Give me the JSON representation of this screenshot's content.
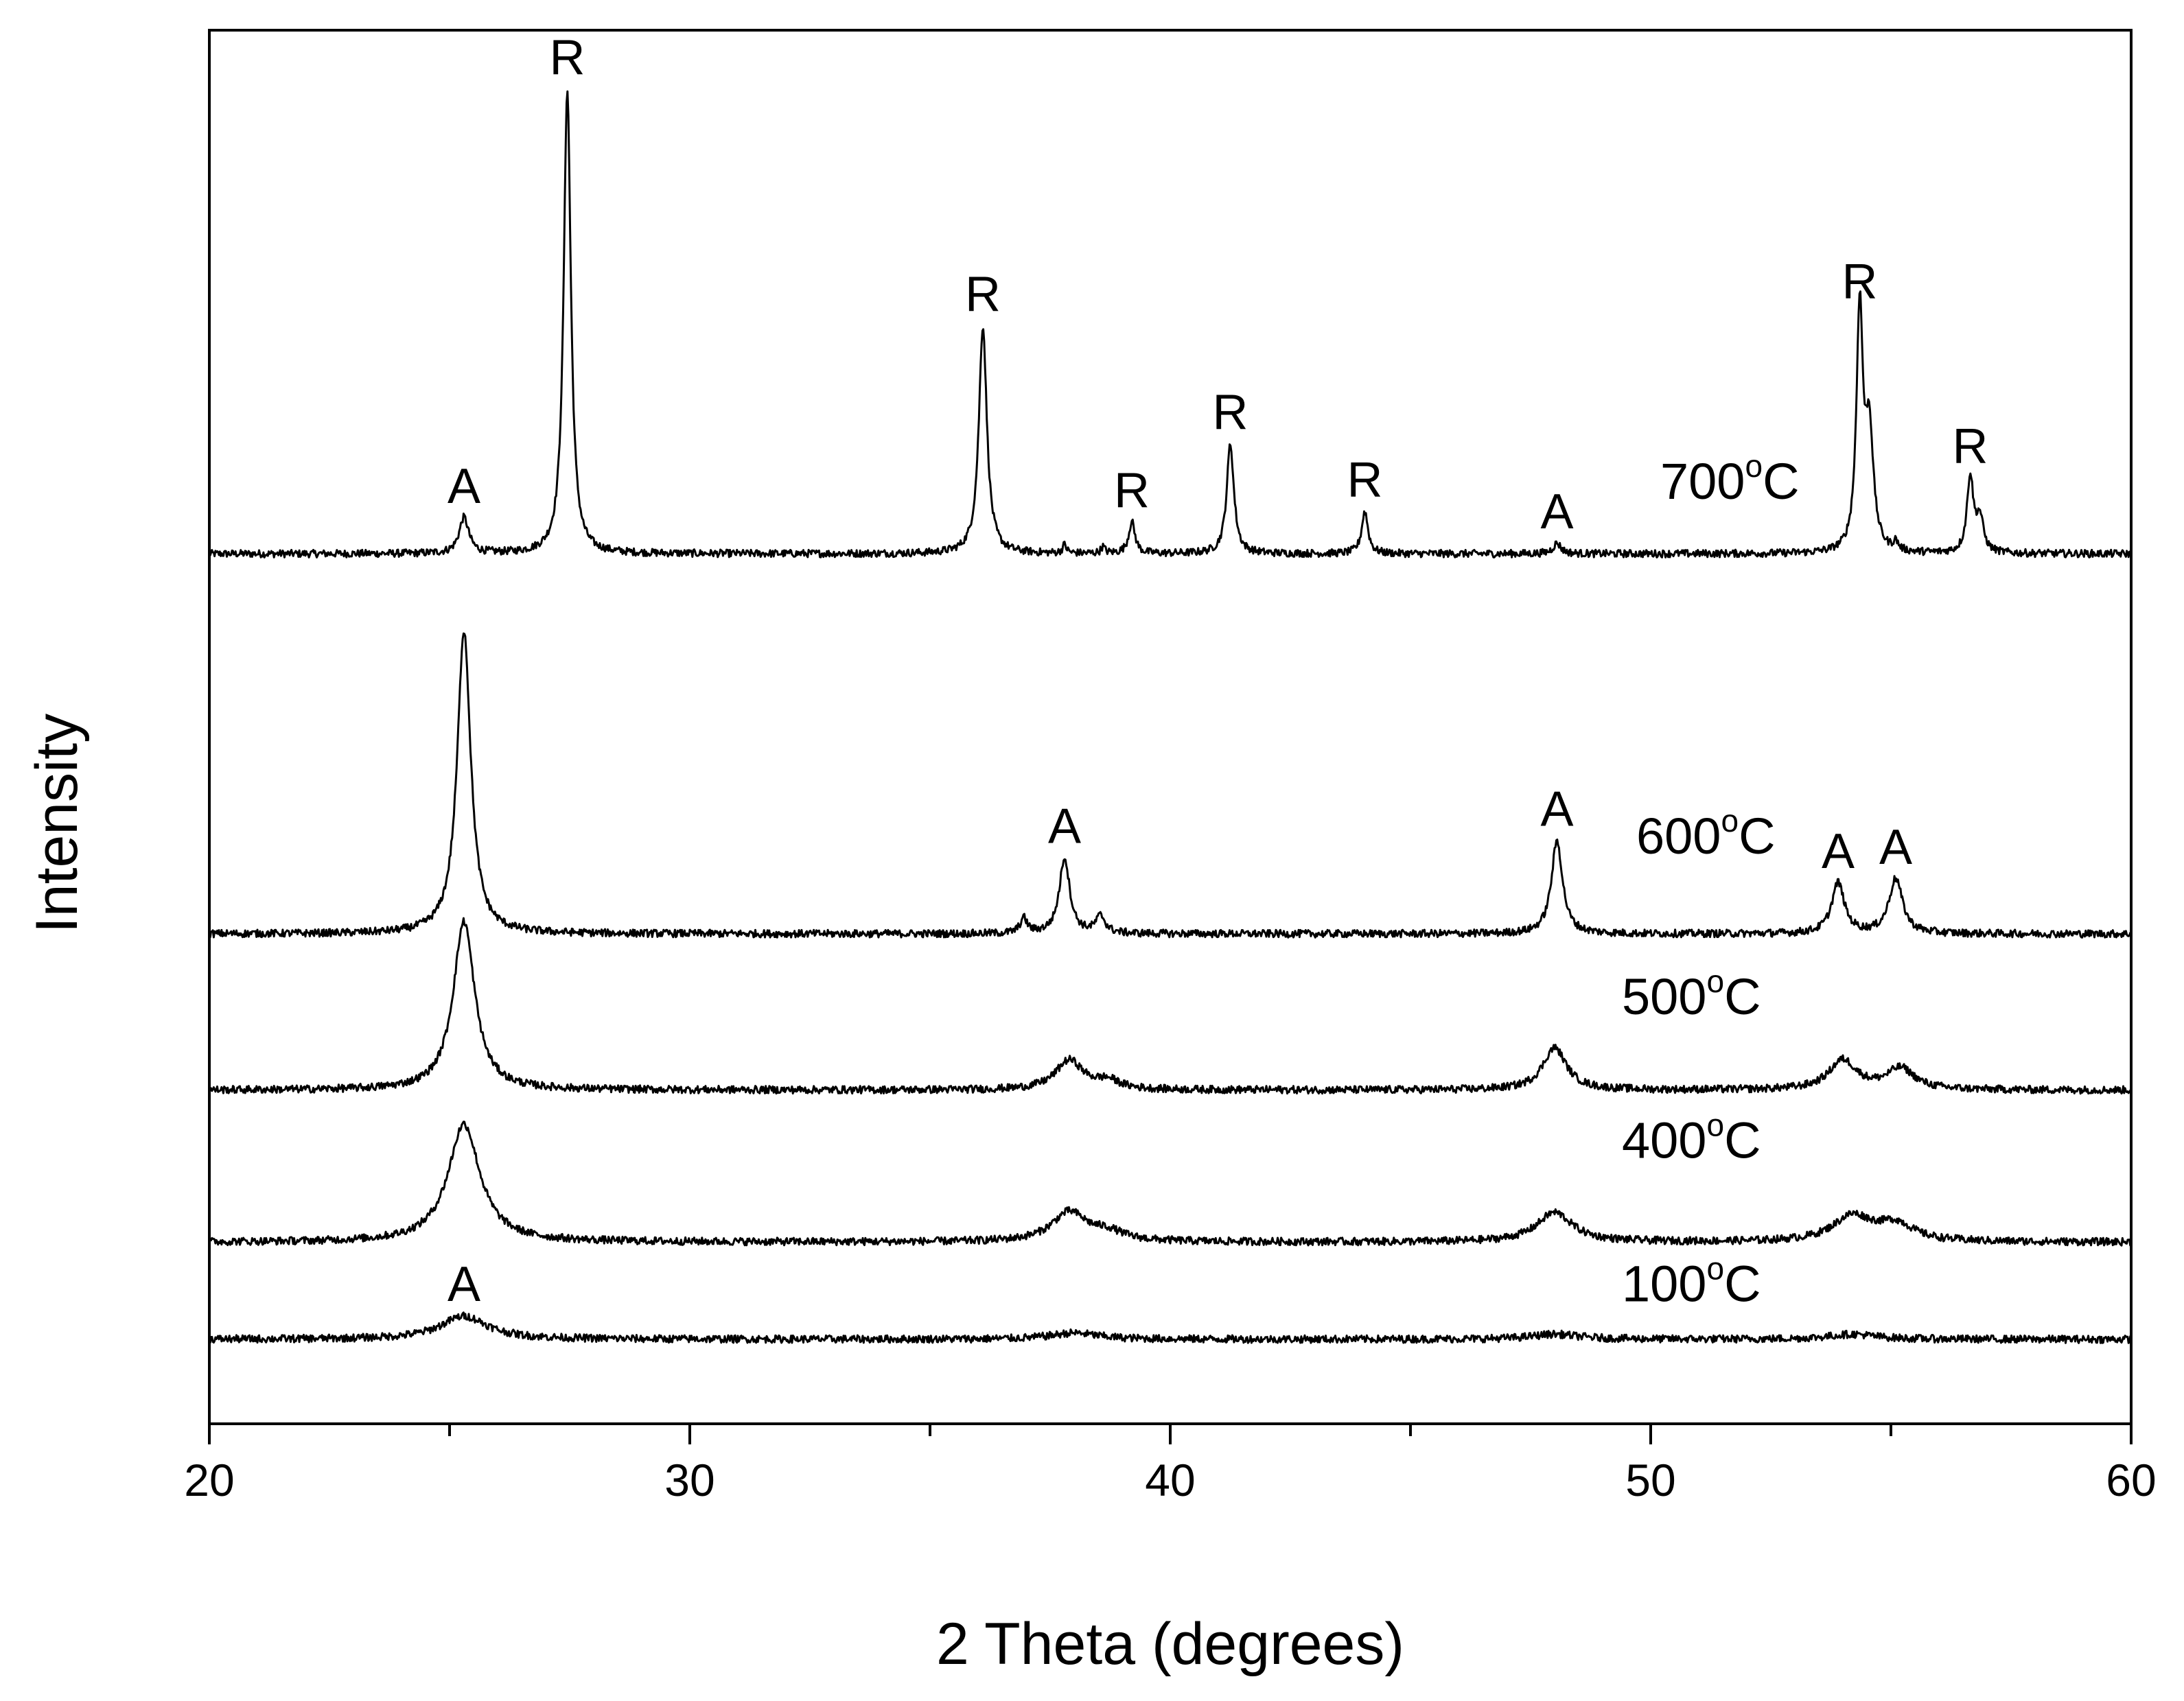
{
  "chart_data": {
    "type": "line",
    "title": "",
    "xlabel": "2 Theta (degrees)",
    "ylabel": "Intensity",
    "xlim": [
      20,
      60
    ],
    "ylim": [
      0,
      3.3
    ],
    "x_ticks": [
      20,
      30,
      40,
      50,
      60
    ],
    "x_minor_step": 5,
    "y_ticks_shown": false,
    "legend": "none",
    "series": [
      {
        "name": "700°C",
        "temp": "700",
        "unit_sup": "o",
        "unit": "C",
        "baseline": 2.06,
        "label_x": 50.2,
        "label_y": 2.19,
        "peaks": [
          {
            "x": 25.3,
            "height": 0.085,
            "width": 0.12,
            "label": "A"
          },
          {
            "x": 27.45,
            "height": 1.1,
            "width": 0.09,
            "label": "R"
          },
          {
            "x": 36.1,
            "height": 0.54,
            "width": 0.1,
            "label": "R"
          },
          {
            "x": 37.8,
            "height": 0.02,
            "width": 0.05,
            "label": ""
          },
          {
            "x": 38.6,
            "height": 0.015,
            "width": 0.05,
            "label": ""
          },
          {
            "x": 39.2,
            "height": 0.075,
            "width": 0.08,
            "label": "R"
          },
          {
            "x": 41.25,
            "height": 0.26,
            "width": 0.09,
            "label": "R"
          },
          {
            "x": 44.05,
            "height": 0.1,
            "width": 0.08,
            "label": "R"
          },
          {
            "x": 48.05,
            "height": 0.025,
            "width": 0.1,
            "label": "A"
          },
          {
            "x": 54.35,
            "height": 0.57,
            "width": 0.08,
            "label": "R"
          },
          {
            "x": 54.55,
            "height": 0.28,
            "width": 0.1,
            "label": ""
          },
          {
            "x": 55.1,
            "height": 0.02,
            "width": 0.06,
            "label": ""
          },
          {
            "x": 56.65,
            "height": 0.18,
            "width": 0.08,
            "label": "R"
          },
          {
            "x": 56.85,
            "height": 0.08,
            "width": 0.09,
            "label": ""
          }
        ]
      },
      {
        "name": "600°C",
        "temp": "600",
        "unit_sup": "o",
        "unit": "C",
        "baseline": 1.16,
        "label_x": 49.7,
        "label_y": 1.35,
        "peaks": [
          {
            "x": 25.3,
            "height": 0.72,
            "width": 0.17,
            "label": ""
          },
          {
            "x": 36.95,
            "height": 0.035,
            "width": 0.09,
            "label": ""
          },
          {
            "x": 37.8,
            "height": 0.18,
            "width": 0.13,
            "label": "A"
          },
          {
            "x": 38.55,
            "height": 0.04,
            "width": 0.12,
            "label": ""
          },
          {
            "x": 48.05,
            "height": 0.22,
            "width": 0.14,
            "label": "A"
          },
          {
            "x": 53.9,
            "height": 0.12,
            "width": 0.16,
            "label": "A"
          },
          {
            "x": 55.1,
            "height": 0.13,
            "width": 0.17,
            "label": "A"
          }
        ]
      },
      {
        "name": "500°C",
        "temp": "500",
        "unit_sup": "o",
        "unit": "C",
        "baseline": 0.79,
        "label_x": 49.4,
        "label_y": 0.97,
        "peaks": [
          {
            "x": 25.3,
            "height": 0.4,
            "width": 0.27,
            "label": ""
          },
          {
            "x": 37.9,
            "height": 0.07,
            "width": 0.35,
            "label": ""
          },
          {
            "x": 38.7,
            "height": 0.02,
            "width": 0.3,
            "label": ""
          },
          {
            "x": 48.0,
            "height": 0.1,
            "width": 0.3,
            "label": ""
          },
          {
            "x": 54.0,
            "height": 0.07,
            "width": 0.35,
            "label": ""
          },
          {
            "x": 55.2,
            "height": 0.05,
            "width": 0.35,
            "label": ""
          }
        ]
      },
      {
        "name": "400°C",
        "temp": "400",
        "unit_sup": "o",
        "unit": "C",
        "baseline": 0.43,
        "label_x": 49.4,
        "label_y": 0.63,
        "peaks": [
          {
            "x": 25.3,
            "height": 0.28,
            "width": 0.4,
            "label": ""
          },
          {
            "x": 37.9,
            "height": 0.07,
            "width": 0.45,
            "label": ""
          },
          {
            "x": 38.7,
            "height": 0.02,
            "width": 0.4,
            "label": ""
          },
          {
            "x": 48.0,
            "height": 0.07,
            "width": 0.45,
            "label": ""
          },
          {
            "x": 54.2,
            "height": 0.06,
            "width": 0.5,
            "label": ""
          },
          {
            "x": 55.1,
            "height": 0.04,
            "width": 0.45,
            "label": ""
          }
        ]
      },
      {
        "name": "100°C",
        "temp": "100",
        "unit_sup": "o",
        "unit": "C",
        "baseline": 0.2,
        "label_x": 49.4,
        "label_y": 0.29,
        "peaks": [
          {
            "x": 25.3,
            "height": 0.055,
            "width": 0.6,
            "label": "A"
          },
          {
            "x": 38.0,
            "height": 0.015,
            "width": 0.6,
            "label": ""
          },
          {
            "x": 48.0,
            "height": 0.012,
            "width": 0.6,
            "label": ""
          },
          {
            "x": 54.2,
            "height": 0.012,
            "width": 0.6,
            "label": ""
          }
        ]
      }
    ]
  }
}
